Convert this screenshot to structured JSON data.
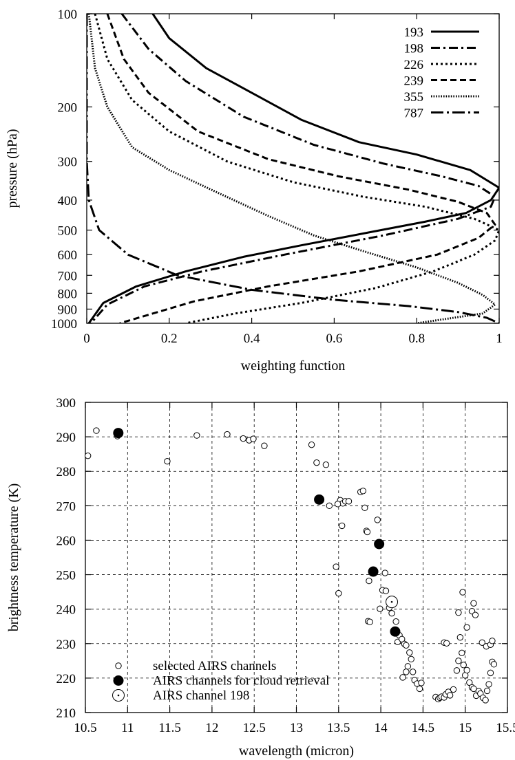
{
  "chart_data": [
    {
      "type": "line",
      "xlabel": "weighting function",
      "ylabel": "pressure (hPa)",
      "xlim": [
        0,
        1
      ],
      "ylim": [
        100,
        1000
      ],
      "yscale": "log",
      "y_inverted": true,
      "grid": false,
      "legend_position": "top-right",
      "xticks": [
        "0",
        "0.2",
        "0.4",
        "0.6",
        "0.8",
        "1"
      ],
      "xtick_values": [
        0,
        0.2,
        0.4,
        0.6,
        0.8,
        1
      ],
      "yticks": [
        "100",
        "200",
        "300",
        "400",
        "500",
        "600",
        "700",
        "800",
        "900",
        "1000"
      ],
      "ytick_values": [
        100,
        200,
        300,
        400,
        500,
        600,
        700,
        800,
        900,
        1000
      ],
      "series": [
        {
          "name": "193",
          "dash": "solid",
          "points": [
            [
              0.16,
              100
            ],
            [
              0.2,
              120
            ],
            [
              0.29,
              150
            ],
            [
              0.4,
              180
            ],
            [
              0.52,
              220
            ],
            [
              0.66,
              260
            ],
            [
              0.8,
              285
            ],
            [
              0.93,
              320
            ],
            [
              1.0,
              365
            ],
            [
              0.98,
              400
            ],
            [
              0.92,
              440
            ],
            [
              0.82,
              470
            ],
            [
              0.68,
              510
            ],
            [
              0.52,
              560
            ],
            [
              0.38,
              610
            ],
            [
              0.24,
              680
            ],
            [
              0.12,
              760
            ],
            [
              0.04,
              860
            ],
            [
              0.005,
              1000
            ]
          ]
        },
        {
          "name": "198",
          "dash": "dashdot",
          "points": [
            [
              0.085,
              100
            ],
            [
              0.15,
              130
            ],
            [
              0.24,
              165
            ],
            [
              0.38,
              215
            ],
            [
              0.55,
              265
            ],
            [
              0.72,
              305
            ],
            [
              0.86,
              335
            ],
            [
              0.95,
              360
            ],
            [
              0.99,
              390
            ],
            [
              0.98,
              420
            ],
            [
              0.9,
              460
            ],
            [
              0.72,
              520
            ],
            [
              0.48,
              600
            ],
            [
              0.28,
              680
            ],
            [
              0.14,
              760
            ],
            [
              0.05,
              870
            ],
            [
              0.01,
              1000
            ]
          ]
        },
        {
          "name": "226",
          "dash": "dotted",
          "points": [
            [
              0.02,
              100
            ],
            [
              0.05,
              140
            ],
            [
              0.11,
              190
            ],
            [
              0.2,
              240
            ],
            [
              0.34,
              300
            ],
            [
              0.5,
              350
            ],
            [
              0.67,
              390
            ],
            [
              0.82,
              420
            ],
            [
              0.94,
              460
            ],
            [
              1.0,
              500
            ],
            [
              0.99,
              540
            ],
            [
              0.94,
              600
            ],
            [
              0.84,
              680
            ],
            [
              0.7,
              770
            ],
            [
              0.52,
              860
            ],
            [
              0.36,
              930
            ],
            [
              0.24,
              1000
            ]
          ]
        },
        {
          "name": "239",
          "dash": "dashed",
          "points": [
            [
              0.05,
              100
            ],
            [
              0.09,
              140
            ],
            [
              0.15,
              180
            ],
            [
              0.27,
              240
            ],
            [
              0.44,
              295
            ],
            [
              0.61,
              335
            ],
            [
              0.78,
              370
            ],
            [
              0.9,
              405
            ],
            [
              0.97,
              440
            ],
            [
              0.99,
              480
            ],
            [
              0.95,
              530
            ],
            [
              0.85,
              600
            ],
            [
              0.66,
              680
            ],
            [
              0.44,
              760
            ],
            [
              0.26,
              850
            ],
            [
              0.08,
              1000
            ]
          ]
        },
        {
          "name": "355",
          "dash": "fine",
          "points": [
            [
              0.005,
              100
            ],
            [
              0.02,
              150
            ],
            [
              0.05,
              200
            ],
            [
              0.11,
              270
            ],
            [
              0.2,
              320
            ],
            [
              0.32,
              380
            ],
            [
              0.44,
              450
            ],
            [
              0.55,
              520
            ],
            [
              0.68,
              590
            ],
            [
              0.8,
              660
            ],
            [
              0.9,
              740
            ],
            [
              0.96,
              810
            ],
            [
              0.99,
              870
            ],
            [
              0.96,
              930
            ],
            [
              0.8,
              1000
            ]
          ]
        },
        {
          "name": "787",
          "dash": "dashdot-long",
          "points": [
            [
              0.0,
              100
            ],
            [
              0.0,
              200
            ],
            [
              0.0,
              300
            ],
            [
              0.005,
              400
            ],
            [
              0.03,
              500
            ],
            [
              0.1,
              600
            ],
            [
              0.22,
              700
            ],
            [
              0.4,
              780
            ],
            [
              0.6,
              840
            ],
            [
              0.78,
              880
            ],
            [
              0.9,
              920
            ],
            [
              0.97,
              960
            ],
            [
              1.0,
              1000
            ]
          ]
        }
      ]
    },
    {
      "type": "scatter",
      "xlabel": "wavelength (micron)",
      "ylabel": "brightness temperature (K)",
      "xlim": [
        10.5,
        15.5
      ],
      "ylim": [
        210,
        300
      ],
      "grid": true,
      "legend_position": "bottom-left",
      "xticks": [
        "10.5",
        "11",
        "11.5",
        "12",
        "12.5",
        "13",
        "13.5",
        "14",
        "14.5",
        "15",
        "15.5"
      ],
      "xtick_values": [
        10.5,
        11,
        11.5,
        12,
        12.5,
        13,
        13.5,
        14,
        14.5,
        15,
        15.5
      ],
      "yticks": [
        "210",
        "220",
        "230",
        "240",
        "250",
        "260",
        "270",
        "280",
        "290",
        "300"
      ],
      "ytick_values": [
        210,
        220,
        230,
        240,
        250,
        260,
        270,
        280,
        290,
        300
      ],
      "series": [
        {
          "name": "selected AIRS channels",
          "marker": "small-open-circle",
          "x": [
            10.53,
            10.63,
            10.88,
            11.47,
            11.82,
            12.18,
            12.37,
            12.44,
            12.49,
            12.62,
            13.18,
            13.24,
            13.35,
            13.39,
            13.47,
            13.52,
            13.54,
            13.55,
            13.58,
            13.62,
            13.76,
            13.79,
            13.81,
            13.83,
            13.84,
            13.86,
            13.85,
            13.87,
            13.5,
            13.49,
            13.96,
            13.99,
            14.02,
            14.05,
            14.06,
            14.1,
            14.13,
            14.18,
            14.2,
            14.22,
            14.25,
            14.28,
            14.3,
            14.32,
            14.34,
            14.36,
            14.38,
            14.4,
            14.43,
            14.46,
            14.48,
            14.65,
            14.68,
            14.7,
            14.72,
            14.75,
            14.77,
            14.8,
            14.82,
            14.86,
            14.9,
            14.92,
            14.94,
            14.96,
            14.98,
            15.0,
            15.02,
            15.05,
            15.08,
            15.1,
            15.13,
            15.16,
            15.18,
            15.21,
            15.24,
            15.26,
            15.28,
            15.3,
            15.32,
            15.34,
            14.75,
            14.78,
            15.02,
            15.08,
            15.2,
            15.25,
            15.3,
            15.32,
            14.26,
            14.3,
            14.92,
            14.97,
            15.1,
            15.12
          ],
          "y": [
            284.5,
            291.8,
            290.2,
            282.9,
            290.4,
            290.7,
            289.5,
            289.0,
            289.4,
            287.4,
            287.7,
            282.5,
            281.9,
            270.0,
            252.3,
            271.6,
            264.2,
            270.7,
            271.3,
            271.3,
            274.0,
            274.3,
            269.4,
            262.7,
            262.4,
            248.2,
            236.5,
            236.3,
            244.6,
            270.5,
            265.9,
            240.1,
            245.5,
            250.5,
            245.3,
            240.4,
            238.8,
            236.4,
            230.5,
            232.4,
            231.3,
            229.9,
            229.5,
            223.4,
            227.4,
            225.5,
            221.8,
            219.4,
            218.4,
            216.9,
            218.6,
            214.5,
            213.9,
            214.3,
            214.6,
            214.4,
            215.3,
            216.0,
            215.0,
            216.7,
            222.2,
            225.0,
            231.8,
            227.3,
            223.8,
            220.8,
            222.3,
            218.7,
            217.3,
            216.9,
            214.9,
            216.2,
            215.5,
            214.3,
            213.6,
            216.3,
            218.2,
            221.5,
            224.7,
            224.0,
            230.3,
            230.1,
            234.7,
            239.4,
            230.3,
            229.2,
            229.7,
            230.8,
            220.2,
            221.8,
            239.0,
            244.9,
            241.7,
            238.3
          ]
        },
        {
          "name": "AIRS channels for cloud retrieval",
          "marker": "filled-circle",
          "x": [
            10.89,
            13.27,
            13.91,
            13.98,
            14.17
          ],
          "y": [
            291.1,
            271.8,
            250.9,
            258.9,
            233.5
          ]
        },
        {
          "name": "AIRS channel 198",
          "marker": "large-open-circle",
          "x": [
            14.13
          ],
          "y": [
            242.1
          ]
        }
      ]
    }
  ]
}
